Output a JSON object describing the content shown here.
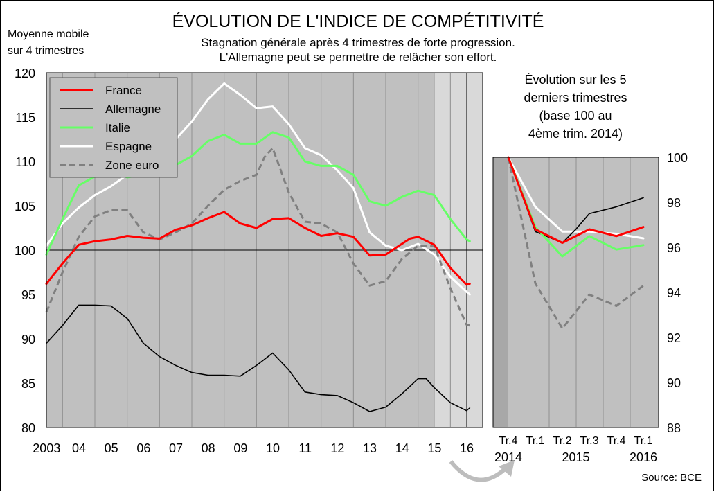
{
  "title": "ÉVOLUTION DE L'INDICE DE COMPÉTITIVITÉ",
  "subtitle_lines": [
    "Stagnation générale après 4 trimestres de forte progression.",
    "L'Allemagne peut se permettre de relâcher son effort."
  ],
  "source": "Source: BCE",
  "chart_data": [
    {
      "type": "line",
      "ylabel_lines": [
        "Moyenne mobile",
        "sur 4 trimestres"
      ],
      "ylim": [
        80,
        120
      ],
      "xlim": [
        2003,
        2016.5
      ],
      "yticks": [
        80,
        85,
        90,
        95,
        100,
        105,
        110,
        115,
        120
      ],
      "xtick_labels": [
        "2003",
        "04",
        "05",
        "06",
        "07",
        "08",
        "09",
        "10",
        "11",
        "12",
        "13",
        "14",
        "15",
        "16"
      ],
      "xtick_values": [
        2003.5,
        2004.5,
        2005.5,
        2006.5,
        2007.5,
        2008.5,
        2009.5,
        2010.5,
        2011.5,
        2012.5,
        2013.5,
        2014.5,
        2015.5,
        2016.5
      ],
      "reference_line": 100,
      "grid": true,
      "legend_position": "top-left",
      "highlight_from": 2015.0,
      "series": [
        {
          "name": "France",
          "color": "#ff0000",
          "style": "solid",
          "x": [
            2003.0,
            2003.5,
            2004.0,
            2004.5,
            2005.0,
            2005.5,
            2006.0,
            2006.5,
            2007.0,
            2007.5,
            2008.0,
            2008.5,
            2009.0,
            2009.5,
            2010.0,
            2010.5,
            2011.0,
            2011.5,
            2012.0,
            2012.5,
            2013.0,
            2013.5,
            2014.0,
            2014.25,
            2014.5,
            2015.0,
            2015.5,
            2016.0,
            2016.1
          ],
          "y": [
            96.2,
            98.5,
            100.6,
            101.0,
            101.2,
            101.6,
            101.4,
            101.3,
            102.3,
            102.8,
            103.6,
            104.3,
            103.0,
            102.5,
            103.5,
            103.6,
            102.5,
            101.6,
            101.9,
            101.5,
            99.4,
            99.5,
            100.7,
            101.3,
            101.5,
            100.6,
            98.0,
            96.1,
            96.2
          ]
        },
        {
          "name": "Allemagne",
          "color": "#000000",
          "style": "solid",
          "x": [
            2003.0,
            2003.5,
            2004.0,
            2004.5,
            2005.0,
            2005.5,
            2006.0,
            2006.5,
            2007.0,
            2007.5,
            2008.0,
            2008.5,
            2009.0,
            2009.5,
            2010.0,
            2010.5,
            2011.0,
            2011.5,
            2012.0,
            2012.5,
            2013.0,
            2013.5,
            2014.0,
            2014.5,
            2014.75,
            2015.0,
            2015.5,
            2016.0,
            2016.1
          ],
          "y": [
            89.5,
            91.5,
            93.8,
            93.8,
            93.7,
            92.3,
            89.5,
            88.0,
            87.0,
            86.2,
            85.9,
            85.9,
            85.8,
            87.0,
            88.4,
            86.5,
            84.0,
            83.7,
            83.6,
            82.8,
            81.8,
            82.3,
            83.8,
            85.5,
            85.5,
            84.5,
            82.8,
            81.9,
            82.2
          ]
        },
        {
          "name": "Italie",
          "color": "#66ff66",
          "style": "solid",
          "x": [
            2003.0,
            2003.5,
            2004.0,
            2004.5,
            2005.0,
            2005.5,
            2006.0,
            2006.5,
            2007.0,
            2007.5,
            2008.0,
            2008.5,
            2009.0,
            2009.5,
            2010.0,
            2010.5,
            2011.0,
            2011.5,
            2012.0,
            2012.5,
            2013.0,
            2013.5,
            2014.0,
            2014.5,
            2015.0,
            2015.5,
            2016.0,
            2016.1
          ],
          "y": [
            99.5,
            103.5,
            107.3,
            108.3,
            109.0,
            108.2,
            108.5,
            109.0,
            109.6,
            110.6,
            112.3,
            113.0,
            112.0,
            112.0,
            113.3,
            112.7,
            110.0,
            109.5,
            109.5,
            108.5,
            105.5,
            105.0,
            106.0,
            106.7,
            106.2,
            103.5,
            101.2,
            101.0
          ]
        },
        {
          "name": "Espagne",
          "color": "#ffffff",
          "style": "solid",
          "x": [
            2003.0,
            2003.5,
            2004.0,
            2004.5,
            2005.0,
            2005.5,
            2006.0,
            2006.5,
            2007.0,
            2007.5,
            2008.0,
            2008.5,
            2009.0,
            2009.5,
            2010.0,
            2010.5,
            2011.0,
            2011.5,
            2012.0,
            2012.5,
            2013.0,
            2013.5,
            2014.0,
            2014.5,
            2015.0,
            2015.5,
            2016.0,
            2016.1
          ],
          "y": [
            100.5,
            103.0,
            104.8,
            106.2,
            107.2,
            108.5,
            109.5,
            110.5,
            112.5,
            114.5,
            117.0,
            118.8,
            117.5,
            116.0,
            116.2,
            114.2,
            111.5,
            110.7,
            109.0,
            107.0,
            102.0,
            100.5,
            100.0,
            100.7,
            99.5,
            97.0,
            95.3,
            95.0
          ]
        },
        {
          "name": "Zone euro",
          "color": "#808080",
          "style": "dashed",
          "x": [
            2003.0,
            2003.5,
            2004.0,
            2004.5,
            2005.0,
            2005.5,
            2006.0,
            2006.5,
            2007.0,
            2007.5,
            2008.0,
            2008.5,
            2009.0,
            2009.5,
            2009.75,
            2010.0,
            2010.5,
            2011.0,
            2011.5,
            2012.0,
            2012.5,
            2013.0,
            2013.5,
            2014.0,
            2014.5,
            2015.0,
            2015.5,
            2016.0,
            2016.1
          ],
          "y": [
            93.0,
            97.5,
            101.5,
            103.8,
            104.5,
            104.5,
            102.0,
            101.2,
            102.0,
            103.0,
            105.0,
            106.8,
            107.8,
            108.5,
            110.5,
            111.5,
            106.5,
            103.2,
            103.0,
            102.0,
            98.5,
            96.0,
            96.5,
            99.0,
            100.5,
            100.5,
            95.7,
            91.6,
            91.5
          ]
        }
      ]
    },
    {
      "type": "line",
      "title_lines": [
        "Évolution sur les 5",
        "derniers trimestres",
        "(base 100 au",
        "4ème trim. 2014)"
      ],
      "ylim": [
        88,
        100
      ],
      "yticks": [
        88,
        90,
        92,
        94,
        96,
        98,
        100
      ],
      "x_quarters": [
        "Tr.4",
        "Tr.1",
        "Tr.2",
        "Tr.3",
        "Tr.4",
        "Tr.1"
      ],
      "x_years": [
        {
          "label": "2014",
          "at": 0
        },
        {
          "label": "2015",
          "at": 2.5
        },
        {
          "label": "2016",
          "at": 5
        }
      ],
      "grid": true,
      "series": [
        {
          "name": "France",
          "color": "#ff0000",
          "style": "solid",
          "x": [
            0,
            1,
            2,
            3,
            4,
            5
          ],
          "y": [
            100.0,
            96.8,
            96.2,
            96.8,
            96.5,
            96.9
          ]
        },
        {
          "name": "Allemagne",
          "color": "#000000",
          "style": "solid",
          "x": [
            0,
            1,
            2,
            2.5,
            3,
            4,
            5
          ],
          "y": [
            100.0,
            96.7,
            96.2,
            96.8,
            97.5,
            97.8,
            98.2
          ]
        },
        {
          "name": "Italie",
          "color": "#66ff66",
          "style": "solid",
          "x": [
            0,
            1,
            2,
            3,
            4,
            5
          ],
          "y": [
            100.0,
            96.9,
            95.6,
            96.5,
            95.9,
            96.1
          ]
        },
        {
          "name": "Espagne",
          "color": "#ffffff",
          "style": "solid",
          "x": [
            0,
            1,
            2,
            3,
            4,
            5
          ],
          "y": [
            100.0,
            97.8,
            96.7,
            96.7,
            96.6,
            96.4
          ]
        },
        {
          "name": "Zone euro",
          "color": "#808080",
          "style": "dashed",
          "x": [
            0,
            1,
            2,
            3,
            4,
            5
          ],
          "y": [
            100.0,
            94.4,
            92.4,
            93.9,
            93.4,
            94.3
          ]
        }
      ]
    }
  ]
}
